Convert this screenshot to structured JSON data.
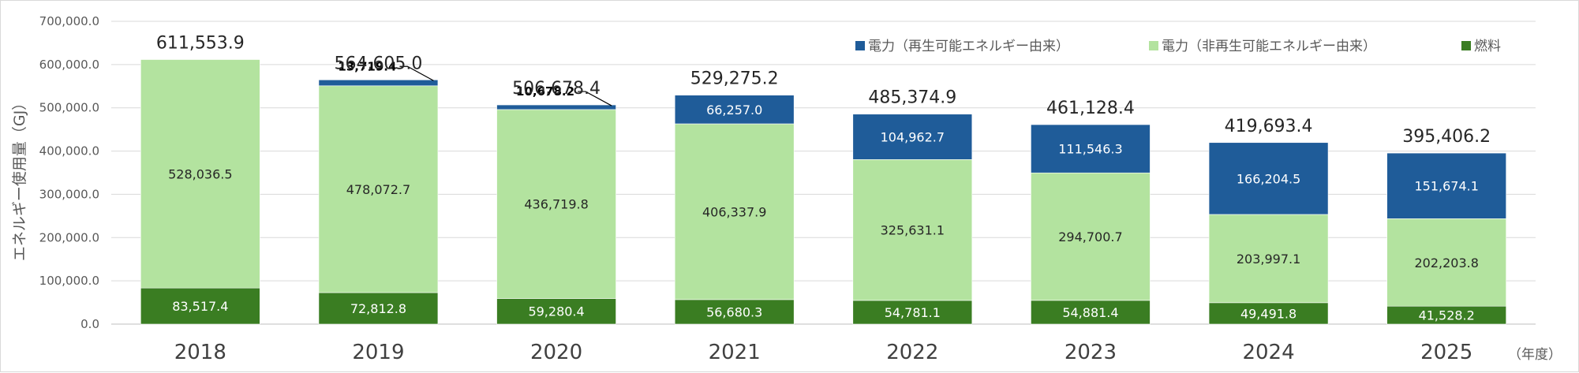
{
  "colors": {
    "renewable": "#1f5c99",
    "nonrenewable": "#b3e39f",
    "fuel": "#3a7d22",
    "grid": "#d9d9d9"
  },
  "chart_data": {
    "type": "bar",
    "stacked": true,
    "categories": [
      "2018",
      "2019",
      "2020",
      "2021",
      "2022",
      "2023",
      "2024",
      "2025"
    ],
    "ylabel": "エネルギー使用量（GJ）",
    "xunit": "（年度）",
    "ylim": [
      0,
      700000
    ],
    "yticks": [
      "0.0",
      "100,000.0",
      "200,000.0",
      "300,000.0",
      "400,000.0",
      "500,000.0",
      "600,000.0",
      "700,000.0"
    ],
    "grid": true,
    "legend_position": "top-right",
    "series": [
      {
        "name": "燃料",
        "key": "fuel",
        "values": [
          83517.4,
          72812.8,
          59280.4,
          56680.3,
          54781.1,
          54881.4,
          49491.8,
          41528.2
        ],
        "labels": [
          "83,517.4",
          "72,812.8",
          "59,280.4",
          "56,680.3",
          "54,781.1",
          "54,881.4",
          "49,491.8",
          "41,528.2"
        ]
      },
      {
        "name": "電力（非再生可能エネルギー由来）",
        "key": "nonrenewable",
        "values": [
          528036.5,
          478072.7,
          436719.8,
          406337.9,
          325631.1,
          294700.7,
          203997.1,
          202203.8
        ],
        "labels": [
          "528,036.5",
          "478,072.7",
          "436,719.8",
          "406,337.9",
          "325,631.1",
          "294,700.7",
          "203,997.1",
          "202,203.8"
        ]
      },
      {
        "name": "電力（再生可能エネルギー由来）",
        "key": "renewable",
        "values": [
          0,
          13719.4,
          10678.2,
          66257.0,
          104962.7,
          111546.3,
          166204.5,
          151674.1
        ],
        "labels": [
          "",
          "13,719.4",
          "10,678.2",
          "66,257.0",
          "104,962.7",
          "111,546.3",
          "166,204.5",
          "151,674.1"
        ]
      }
    ],
    "totals": [
      611553.9,
      564605.0,
      506678.4,
      529275.2,
      485374.9,
      461128.4,
      419693.4,
      395406.2
    ],
    "total_labels": [
      "611,553.9",
      "564,605.0",
      "506,678.4",
      "529,275.2",
      "485,374.9",
      "461,128.4",
      "419,693.4",
      "395,406.2"
    ]
  }
}
